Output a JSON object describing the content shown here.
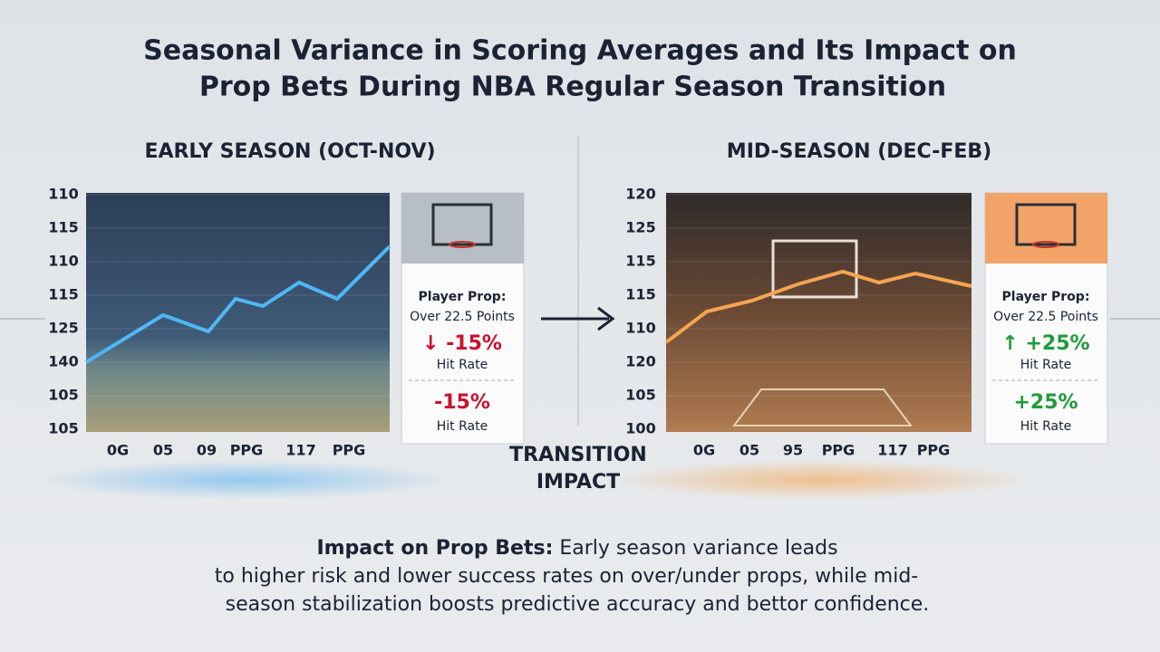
{
  "title": [
    "Seasonal Variance in Scoring Averages and Its Impact on",
    "Prop Bets During NBA Regular Season Transition"
  ],
  "panels": [
    {
      "heading": "EARLY SEASON (OCT-NOV)",
      "y_labels": [
        "110",
        "115",
        "110",
        "115",
        "125",
        "140",
        "105",
        "105"
      ],
      "x_labels": [
        "0G",
        "05",
        "09",
        "PPG",
        "117",
        "PPG"
      ],
      "card": {
        "label": "Player Prop:",
        "line": "Over 22.5 Points",
        "change": "↓ -15%",
        "rate": "Hit Rate",
        "change2": "-15%",
        "rate2": "Hit Rate"
      }
    },
    {
      "heading": "MID-SEASON (DEC-FEB)",
      "y_labels": [
        "120",
        "125",
        "115",
        "115",
        "110",
        "120",
        "105",
        "100"
      ],
      "x_labels": [
        "0G",
        "05",
        "95",
        "PPG",
        "117",
        "PPG"
      ],
      "card": {
        "label": "Player Prop:",
        "line": "Over 22.5 Points",
        "change": "↑ +25%",
        "rate": "Hit Rate",
        "change2": "+25%",
        "rate2": "Hit Rate"
      }
    }
  ],
  "transition": [
    "TRANSITION",
    "IMPACT"
  ],
  "footer": {
    "lead": "Impact on Prop Bets:",
    "lines": [
      " Early season variance leads",
      "to higher risk and lower success rates on over/under props, while mid-",
      "season stabilization boosts predictive accuracy and bettor confidence."
    ]
  }
}
